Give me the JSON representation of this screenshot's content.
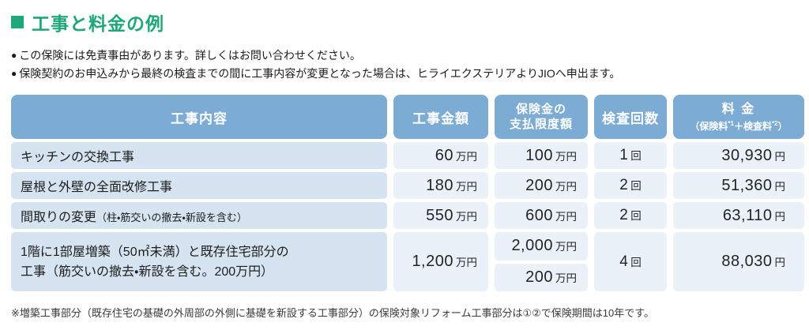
{
  "title": "工事と料金の例",
  "bullet_char": "●",
  "notes": [
    "この保険には免責事由があります。詳しくはお問い合わせください。",
    "保険契約のお申込みから最終の検査までの間に工事内容が変更となった場合は、ヒライエクステリアよりJIOへ申出ます。"
  ],
  "table": {
    "headers": {
      "content": "工事内容",
      "amount": "工事金額",
      "limit": "保険金の\n支払限度額",
      "inspections": "検査回数",
      "fee_main": "料 金",
      "fee_sub_pre": "（保険料",
      "fee_sup1": "*1",
      "fee_sub_mid": "＋検査料",
      "fee_sup2": "*2",
      "fee_sub_post": "）"
    },
    "rows": [
      {
        "content": "キッチンの交換工事",
        "amount": {
          "value": "60",
          "unit": "万円"
        },
        "limit": {
          "value": "100",
          "unit": "万円"
        },
        "inspections": {
          "value": "1",
          "unit": "回"
        },
        "fee": {
          "value": "30,930",
          "unit": "円"
        }
      },
      {
        "content": "屋根と外壁の全面改修工事",
        "amount": {
          "value": "180",
          "unit": "万円"
        },
        "limit": {
          "value": "200",
          "unit": "万円"
        },
        "inspections": {
          "value": "2",
          "unit": "回"
        },
        "fee": {
          "value": "51,360",
          "unit": "円"
        }
      },
      {
        "content": "間取りの変更",
        "content_sub": "（柱・筋交いの撤去・新設を含む）",
        "amount": {
          "value": "550",
          "unit": "万円"
        },
        "limit": {
          "value": "600",
          "unit": "万円"
        },
        "inspections": {
          "value": "2",
          "unit": "回"
        },
        "fee": {
          "value": "63,110",
          "unit": "円"
        }
      },
      {
        "content": "1階に1部屋増築（50㎡未満）と既存住宅部分の\n工事（筋交いの撤去・新設を含む。200万円）",
        "amount": {
          "value": "1,200",
          "unit": "万円"
        },
        "limit_top": {
          "value": "2,000",
          "unit": "万円"
        },
        "limit_bottom": {
          "value": "200",
          "unit": "万円"
        },
        "inspections": {
          "value": "4",
          "unit": "回"
        },
        "fee": {
          "value": "88,030",
          "unit": "円"
        }
      }
    ]
  },
  "footnote": "※増築工事部分（既存住宅の基礎の外周部の外側に基礎を新設する工事部分）の保険対象リフォーム工事部分は①②で保険期間は10年です。",
  "colors": {
    "accent_green": "#1ea878",
    "header_blue": "#7cacd4",
    "row_label_bg": "#d6e4f1",
    "value_cell_bg": "#eaf1f8"
  }
}
